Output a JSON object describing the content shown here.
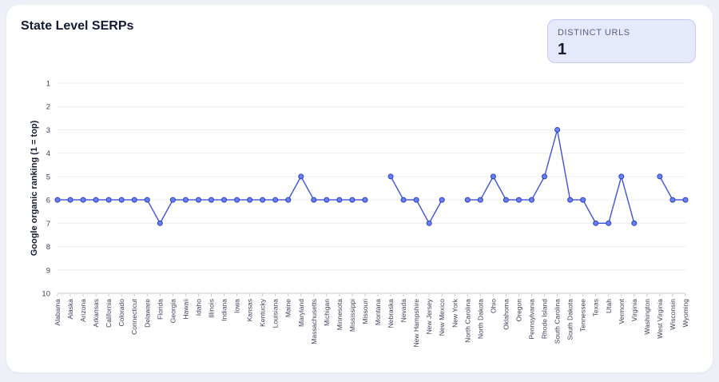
{
  "card": {
    "title": "State Level SERPs",
    "kpi": {
      "label": "DISTINCT URLS",
      "value": "1"
    }
  },
  "chart_data": {
    "type": "line",
    "title": "",
    "xlabel": "",
    "ylabel": "Google organic ranking (1 = top)",
    "ylim": [
      1,
      10
    ],
    "y_inverted": true,
    "yticks": [
      1,
      2,
      3,
      4,
      5,
      6,
      7,
      8,
      9,
      10
    ],
    "grid": true,
    "line_color": "#3b52e0",
    "point_fill": "#6b80ef",
    "categories": [
      "Alabama",
      "Alaska",
      "Arizona",
      "Arkansas",
      "California",
      "Colorado",
      "Connecticut",
      "Delaware",
      "Florida",
      "Georgia",
      "Hawaii",
      "Idaho",
      "Illinois",
      "Indiana",
      "Iowa",
      "Kansas",
      "Kentucky",
      "Louisiana",
      "Maine",
      "Maryland",
      "Massachusetts",
      "Michigan",
      "Minnesota",
      "Mississippi",
      "Missouri",
      "Montana",
      "Nebraska",
      "Nevada",
      "New Hampshire",
      "New Jersey",
      "New Mexico",
      "New York",
      "North Carolina",
      "North Dakota",
      "Ohio",
      "Oklahoma",
      "Oregon",
      "Pennsylvania",
      "Rhode Island",
      "South Carolina",
      "South Dakota",
      "Tennessee",
      "Texas",
      "Utah",
      "Vermont",
      "Virginia",
      "Washington",
      "West Virginia",
      "Wisconsin",
      "Wyoming"
    ],
    "series": [
      {
        "values": [
          6,
          6,
          6,
          6,
          6,
          6,
          6,
          6,
          7,
          6,
          6,
          6,
          6,
          6,
          6,
          6,
          6,
          6,
          6,
          5,
          6,
          6,
          6,
          6,
          6,
          null,
          5,
          6,
          6,
          7,
          6,
          null,
          6,
          6,
          5,
          6,
          6,
          6,
          5,
          3,
          6,
          6,
          7,
          7,
          5,
          7,
          null,
          5,
          6,
          6
        ]
      }
    ]
  }
}
